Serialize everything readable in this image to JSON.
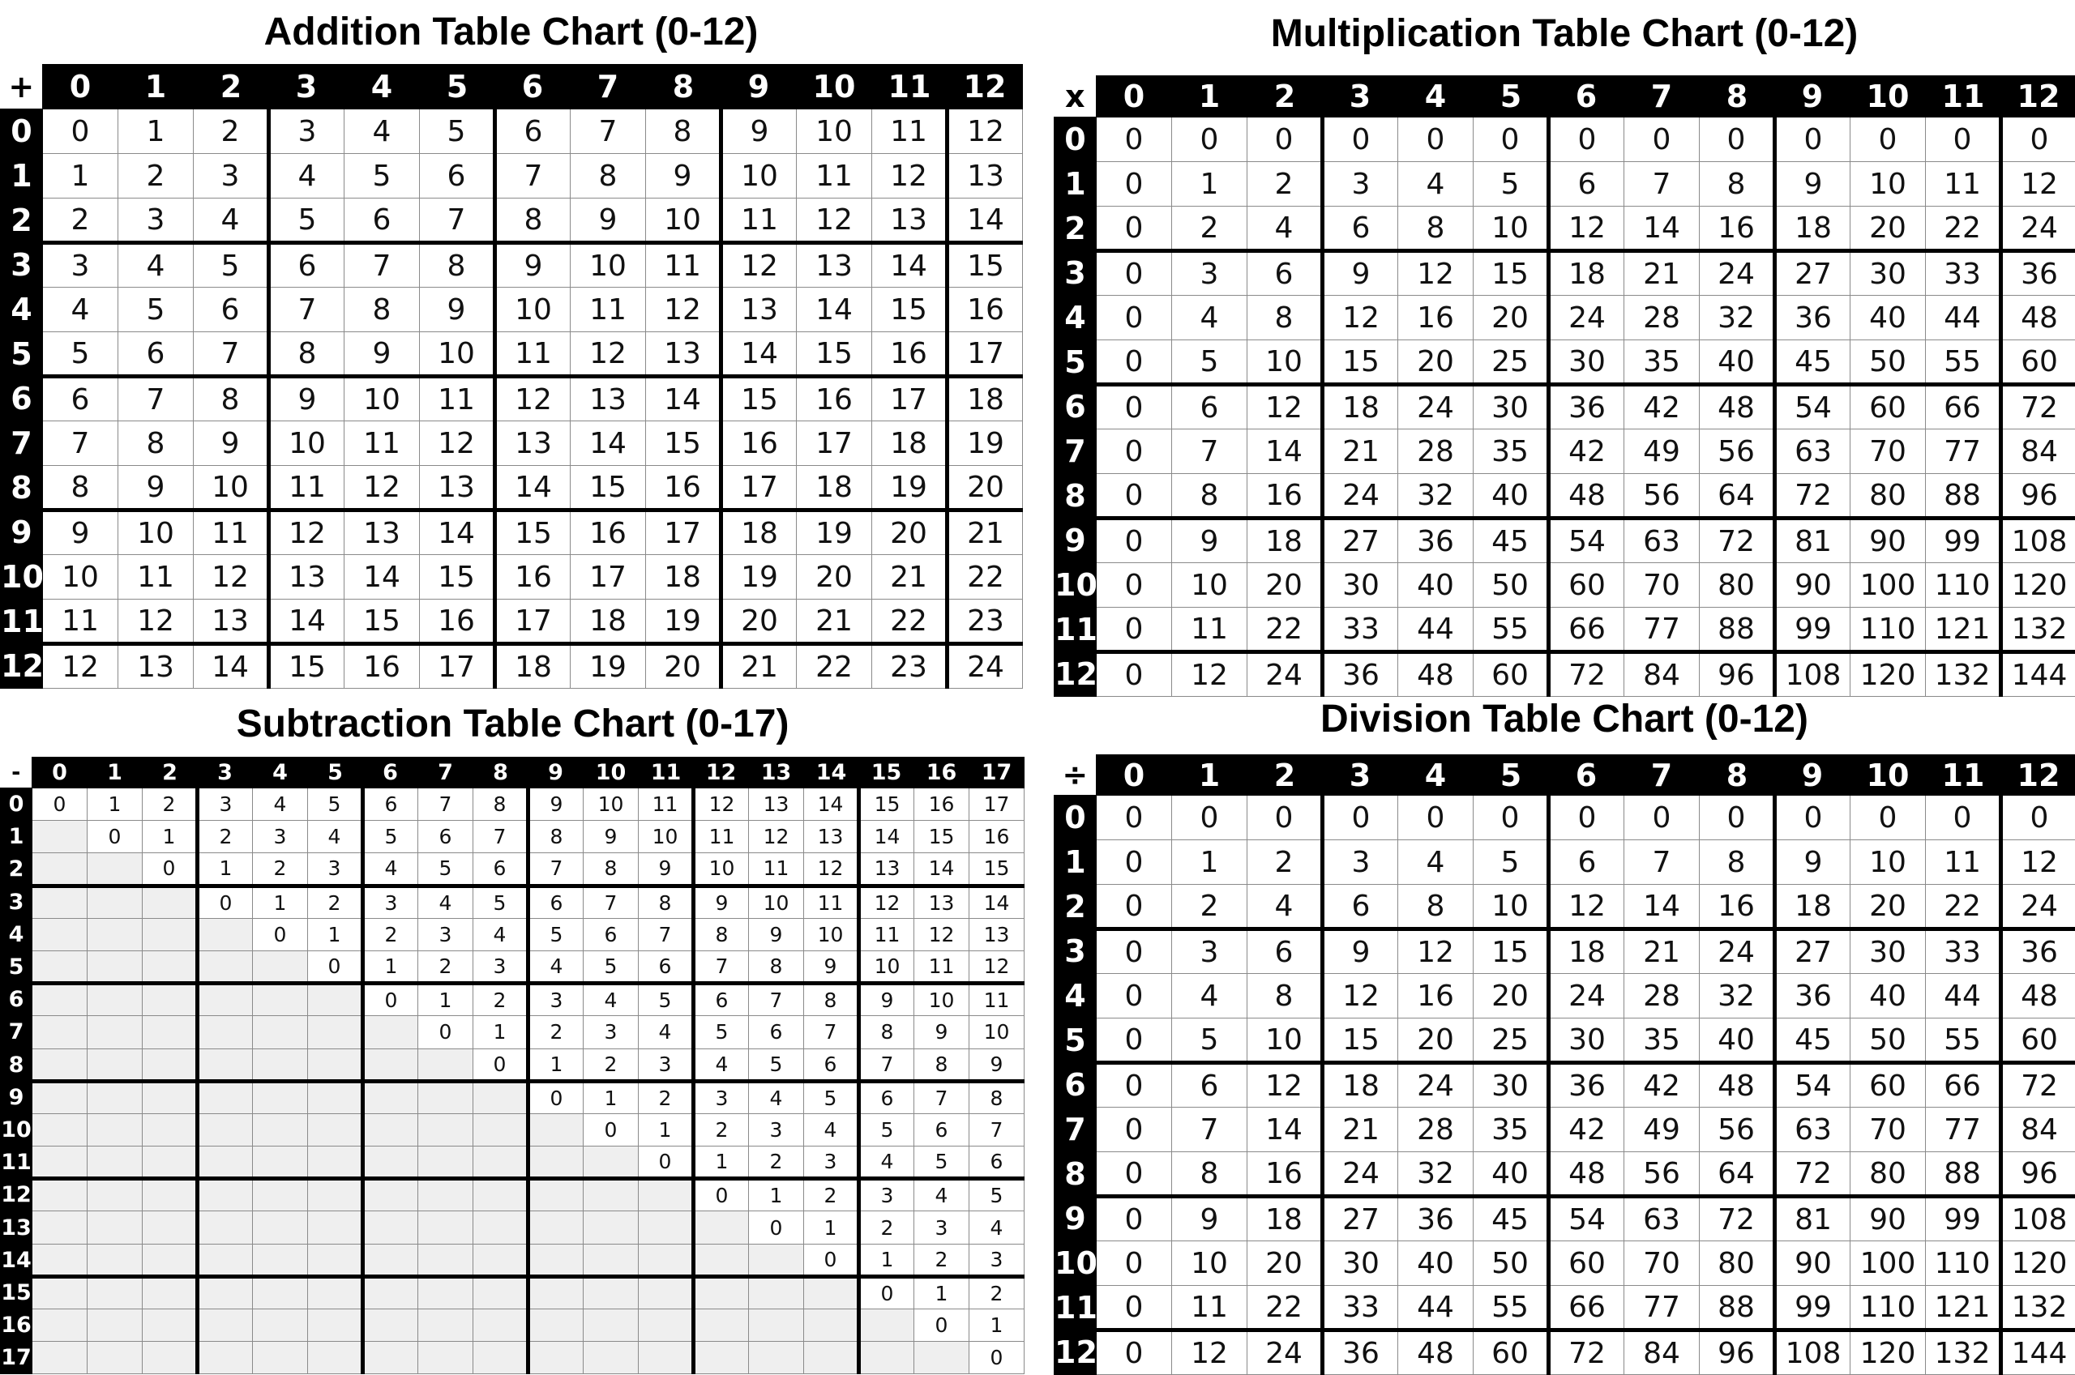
{
  "addition": {
    "title": "Addition Table Chart (0-12)",
    "symbol": "+",
    "headers": [
      0,
      1,
      2,
      3,
      4,
      5,
      6,
      7,
      8,
      9,
      10,
      11,
      12
    ],
    "rows": [
      [
        0,
        1,
        2,
        3,
        4,
        5,
        6,
        7,
        8,
        9,
        10,
        11,
        12
      ],
      [
        1,
        2,
        3,
        4,
        5,
        6,
        7,
        8,
        9,
        10,
        11,
        12,
        13
      ],
      [
        2,
        3,
        4,
        5,
        6,
        7,
        8,
        9,
        10,
        11,
        12,
        13,
        14
      ],
      [
        3,
        4,
        5,
        6,
        7,
        8,
        9,
        10,
        11,
        12,
        13,
        14,
        15
      ],
      [
        4,
        5,
        6,
        7,
        8,
        9,
        10,
        11,
        12,
        13,
        14,
        15,
        16
      ],
      [
        5,
        6,
        7,
        8,
        9,
        10,
        11,
        12,
        13,
        14,
        15,
        16,
        17
      ],
      [
        6,
        7,
        8,
        9,
        10,
        11,
        12,
        13,
        14,
        15,
        16,
        17,
        18
      ],
      [
        7,
        8,
        9,
        10,
        11,
        12,
        13,
        14,
        15,
        16,
        17,
        18,
        19
      ],
      [
        8,
        9,
        10,
        11,
        12,
        13,
        14,
        15,
        16,
        17,
        18,
        19,
        20
      ],
      [
        9,
        10,
        11,
        12,
        13,
        14,
        15,
        16,
        17,
        18,
        19,
        20,
        21
      ],
      [
        10,
        11,
        12,
        13,
        14,
        15,
        16,
        17,
        18,
        19,
        20,
        21,
        22
      ],
      [
        11,
        12,
        13,
        14,
        15,
        16,
        17,
        18,
        19,
        20,
        21,
        22,
        23
      ],
      [
        12,
        13,
        14,
        15,
        16,
        17,
        18,
        19,
        20,
        21,
        22,
        23,
        24
      ]
    ]
  },
  "multiplication": {
    "title": "Multiplication Table Chart (0-12)",
    "symbol": "x",
    "headers": [
      0,
      1,
      2,
      3,
      4,
      5,
      6,
      7,
      8,
      9,
      10,
      11,
      12
    ],
    "rows": [
      [
        0,
        0,
        0,
        0,
        0,
        0,
        0,
        0,
        0,
        0,
        0,
        0,
        0
      ],
      [
        0,
        1,
        2,
        3,
        4,
        5,
        6,
        7,
        8,
        9,
        10,
        11,
        12
      ],
      [
        0,
        2,
        4,
        6,
        8,
        10,
        12,
        14,
        16,
        18,
        20,
        22,
        24
      ],
      [
        0,
        3,
        6,
        9,
        12,
        15,
        18,
        21,
        24,
        27,
        30,
        33,
        36
      ],
      [
        0,
        4,
        8,
        12,
        16,
        20,
        24,
        28,
        32,
        36,
        40,
        44,
        48
      ],
      [
        0,
        5,
        10,
        15,
        20,
        25,
        30,
        35,
        40,
        45,
        50,
        55,
        60
      ],
      [
        0,
        6,
        12,
        18,
        24,
        30,
        36,
        42,
        48,
        54,
        60,
        66,
        72
      ],
      [
        0,
        7,
        14,
        21,
        28,
        35,
        42,
        49,
        56,
        63,
        70,
        77,
        84
      ],
      [
        0,
        8,
        16,
        24,
        32,
        40,
        48,
        56,
        64,
        72,
        80,
        88,
        96
      ],
      [
        0,
        9,
        18,
        27,
        36,
        45,
        54,
        63,
        72,
        81,
        90,
        99,
        108
      ],
      [
        0,
        10,
        20,
        30,
        40,
        50,
        60,
        70,
        80,
        90,
        100,
        110,
        120
      ],
      [
        0,
        11,
        22,
        33,
        44,
        55,
        66,
        77,
        88,
        99,
        110,
        121,
        132
      ],
      [
        0,
        12,
        24,
        36,
        48,
        60,
        72,
        84,
        96,
        108,
        120,
        132,
        144
      ]
    ]
  },
  "subtraction": {
    "title": "Subtraction Table Chart (0-17)",
    "symbol": "-",
    "headers": [
      0,
      1,
      2,
      3,
      4,
      5,
      6,
      7,
      8,
      9,
      10,
      11,
      12,
      13,
      14,
      15,
      16,
      17
    ],
    "rows": [
      [
        0,
        1,
        2,
        3,
        4,
        5,
        6,
        7,
        8,
        9,
        10,
        11,
        12,
        13,
        14,
        15,
        16,
        17
      ],
      [
        null,
        0,
        1,
        2,
        3,
        4,
        5,
        6,
        7,
        8,
        9,
        10,
        11,
        12,
        13,
        14,
        15,
        16
      ],
      [
        null,
        null,
        0,
        1,
        2,
        3,
        4,
        5,
        6,
        7,
        8,
        9,
        10,
        11,
        12,
        13,
        14,
        15
      ],
      [
        null,
        null,
        null,
        0,
        1,
        2,
        3,
        4,
        5,
        6,
        7,
        8,
        9,
        10,
        11,
        12,
        13,
        14
      ],
      [
        null,
        null,
        null,
        null,
        0,
        1,
        2,
        3,
        4,
        5,
        6,
        7,
        8,
        9,
        10,
        11,
        12,
        13
      ],
      [
        null,
        null,
        null,
        null,
        null,
        0,
        1,
        2,
        3,
        4,
        5,
        6,
        7,
        8,
        9,
        10,
        11,
        12
      ],
      [
        null,
        null,
        null,
        null,
        null,
        null,
        0,
        1,
        2,
        3,
        4,
        5,
        6,
        7,
        8,
        9,
        10,
        11
      ],
      [
        null,
        null,
        null,
        null,
        null,
        null,
        null,
        0,
        1,
        2,
        3,
        4,
        5,
        6,
        7,
        8,
        9,
        10
      ],
      [
        null,
        null,
        null,
        null,
        null,
        null,
        null,
        null,
        0,
        1,
        2,
        3,
        4,
        5,
        6,
        7,
        8,
        9
      ],
      [
        null,
        null,
        null,
        null,
        null,
        null,
        null,
        null,
        null,
        0,
        1,
        2,
        3,
        4,
        5,
        6,
        7,
        8
      ],
      [
        null,
        null,
        null,
        null,
        null,
        null,
        null,
        null,
        null,
        null,
        0,
        1,
        2,
        3,
        4,
        5,
        6,
        7
      ],
      [
        null,
        null,
        null,
        null,
        null,
        null,
        null,
        null,
        null,
        null,
        null,
        0,
        1,
        2,
        3,
        4,
        5,
        6
      ],
      [
        null,
        null,
        null,
        null,
        null,
        null,
        null,
        null,
        null,
        null,
        null,
        null,
        0,
        1,
        2,
        3,
        4,
        5
      ],
      [
        null,
        null,
        null,
        null,
        null,
        null,
        null,
        null,
        null,
        null,
        null,
        null,
        null,
        0,
        1,
        2,
        3,
        4
      ],
      [
        null,
        null,
        null,
        null,
        null,
        null,
        null,
        null,
        null,
        null,
        null,
        null,
        null,
        null,
        0,
        1,
        2,
        3
      ],
      [
        null,
        null,
        null,
        null,
        null,
        null,
        null,
        null,
        null,
        null,
        null,
        null,
        null,
        null,
        null,
        0,
        1,
        2
      ],
      [
        null,
        null,
        null,
        null,
        null,
        null,
        null,
        null,
        null,
        null,
        null,
        null,
        null,
        null,
        null,
        null,
        0,
        1
      ],
      [
        null,
        null,
        null,
        null,
        null,
        null,
        null,
        null,
        null,
        null,
        null,
        null,
        null,
        null,
        null,
        null,
        null,
        0
      ]
    ]
  },
  "division": {
    "title": "Division Table Chart (0-12)",
    "symbol": "÷",
    "headers": [
      0,
      1,
      2,
      3,
      4,
      5,
      6,
      7,
      8,
      9,
      10,
      11,
      12
    ],
    "rows": [
      [
        0,
        0,
        0,
        0,
        0,
        0,
        0,
        0,
        0,
        0,
        0,
        0,
        0
      ],
      [
        0,
        1,
        2,
        3,
        4,
        5,
        6,
        7,
        8,
        9,
        10,
        11,
        12
      ],
      [
        0,
        2,
        4,
        6,
        8,
        10,
        12,
        14,
        16,
        18,
        20,
        22,
        24
      ],
      [
        0,
        3,
        6,
        9,
        12,
        15,
        18,
        21,
        24,
        27,
        30,
        33,
        36
      ],
      [
        0,
        4,
        8,
        12,
        16,
        20,
        24,
        28,
        32,
        36,
        40,
        44,
        48
      ],
      [
        0,
        5,
        10,
        15,
        20,
        25,
        30,
        35,
        40,
        45,
        50,
        55,
        60
      ],
      [
        0,
        6,
        12,
        18,
        24,
        30,
        36,
        42,
        48,
        54,
        60,
        66,
        72
      ],
      [
        0,
        7,
        14,
        21,
        28,
        35,
        42,
        49,
        56,
        63,
        70,
        77,
        84
      ],
      [
        0,
        8,
        16,
        24,
        32,
        40,
        48,
        56,
        64,
        72,
        80,
        88,
        96
      ],
      [
        0,
        9,
        18,
        27,
        36,
        45,
        54,
        63,
        72,
        81,
        90,
        99,
        108
      ],
      [
        0,
        10,
        20,
        30,
        40,
        50,
        60,
        70,
        80,
        90,
        100,
        110,
        120
      ],
      [
        0,
        11,
        22,
        33,
        44,
        55,
        66,
        77,
        88,
        99,
        110,
        121,
        132
      ],
      [
        0,
        12,
        24,
        36,
        48,
        60,
        72,
        84,
        96,
        108,
        120,
        132,
        144
      ]
    ]
  },
  "colors": {
    "header_bg": "#000000",
    "header_text": "#ffffff",
    "shaded_cell": "#efefef",
    "grid_line": "#8a8a8a"
  }
}
